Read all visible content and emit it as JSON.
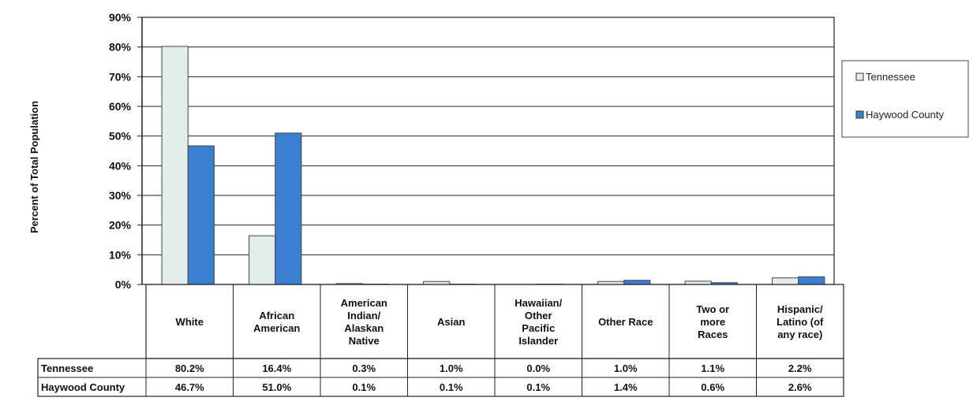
{
  "chart_data": {
    "type": "bar",
    "title": "",
    "xlabel": "",
    "ylabel": "Percent of Total Population",
    "ylim": [
      0,
      90
    ],
    "yticks": [
      "0%",
      "10%",
      "20%",
      "30%",
      "40%",
      "50%",
      "60%",
      "70%",
      "80%",
      "90%"
    ],
    "grid": true,
    "legend_position": "right",
    "categories": [
      [
        "White"
      ],
      [
        "African",
        "American"
      ],
      [
        "American",
        "Indian/",
        "Alaskan",
        "Native"
      ],
      [
        "Asian"
      ],
      [
        "Hawaiian/",
        "Other",
        "Pacific",
        "Islander"
      ],
      [
        "Other Race"
      ],
      [
        "Two or",
        "more",
        "Races"
      ],
      [
        "Hispanic/",
        "Latino (of",
        "any race)"
      ]
    ],
    "series": [
      {
        "name": "Tennessee",
        "legend_label": "Tennessee",
        "color": "#e3eeea",
        "values": [
          80.2,
          16.4,
          0.3,
          1.0,
          0.0,
          1.0,
          1.1,
          2.2
        ],
        "labels": [
          "80.2%",
          "16.4%",
          "0.3%",
          "1.0%",
          "0.0%",
          "1.0%",
          "1.1%",
          "2.2%"
        ]
      },
      {
        "name": "Haywood County",
        "legend_label": "Haywood County",
        "color": "#3a7fd0",
        "values": [
          46.7,
          51.0,
          0.1,
          0.1,
          0.1,
          1.4,
          0.6,
          2.6
        ],
        "labels": [
          "46.7%",
          "51.0%",
          "0.1%",
          "0.1%",
          "0.1%",
          "1.4%",
          "0.6%",
          "2.6%"
        ]
      }
    ]
  }
}
